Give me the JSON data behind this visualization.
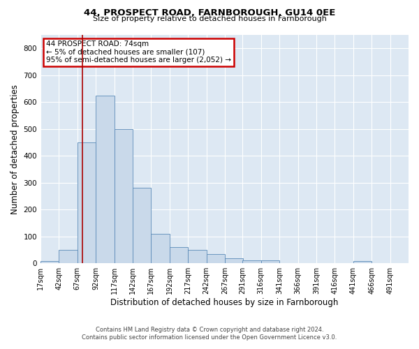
{
  "title1": "44, PROSPECT ROAD, FARNBOROUGH, GU14 0EE",
  "title2": "Size of property relative to detached houses in Farnborough",
  "xlabel": "Distribution of detached houses by size in Farnborough",
  "ylabel": "Number of detached properties",
  "footer1": "Contains HM Land Registry data © Crown copyright and database right 2024.",
  "footer2": "Contains public sector information licensed under the Open Government Licence v3.0.",
  "bar_color": "#c9d9ea",
  "bar_edge_color": "#5a8ab8",
  "annotation_text": "44 PROSPECT ROAD: 74sqm\n← 5% of detached houses are smaller (107)\n95% of semi-detached houses are larger (2,052) →",
  "annotation_box_color": "#ffffff",
  "annotation_box_edge_color": "#cc0000",
  "vline_color": "#aa0000",
  "vline_x": 74,
  "bin_edges": [
    17,
    42,
    67,
    92,
    117,
    142,
    167,
    192,
    217,
    242,
    267,
    291,
    316,
    341,
    366,
    391,
    416,
    441,
    466,
    491,
    516
  ],
  "bar_heights": [
    8,
    50,
    450,
    625,
    500,
    280,
    110,
    60,
    50,
    35,
    20,
    10,
    10,
    0,
    0,
    0,
    0,
    8,
    0,
    0
  ],
  "ylim": [
    0,
    850
  ],
  "yticks": [
    0,
    100,
    200,
    300,
    400,
    500,
    600,
    700,
    800
  ],
  "background_color": "#dde8f3",
  "grid_color": "#ffffff",
  "title1_fontsize": 9.5,
  "title2_fontsize": 8.0,
  "tick_label_fontsize": 7.0,
  "axis_label_fontsize": 8.5,
  "annotation_fontsize": 7.5,
  "footer_fontsize": 6.0
}
